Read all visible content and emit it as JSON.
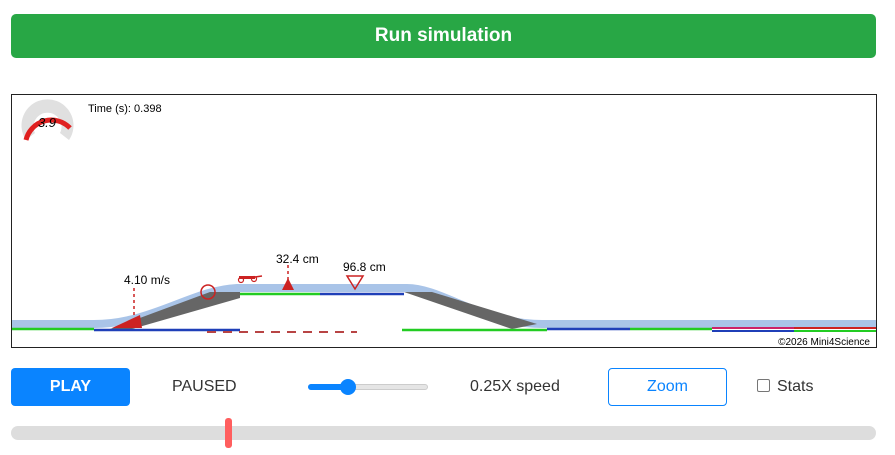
{
  "run_button": {
    "label": "Run simulation",
    "color": "#28a745"
  },
  "simulation": {
    "speedometer": {
      "value": "3.9",
      "needle_color": "#e02020"
    },
    "time_label": "Time (s): 0.398",
    "velocity_label": "4.10 m/s",
    "jump_height_label": "32.4 cm",
    "landing_label": "96.8 cm",
    "copyright": "©2026 Mini4Science",
    "colors": {
      "track": "#a9c4e8",
      "ramp": "#666666",
      "green": "#22cc22",
      "blue": "#1f3fb8",
      "red": "#cc2222"
    }
  },
  "controls": {
    "play_label": "PLAY",
    "status": "PAUSED",
    "speed_label": "0.25X speed",
    "speed_fraction": 0.33,
    "zoom_label": "Zoom",
    "stats_label": "Stats",
    "stats_checked": false,
    "progress_fraction": 0.251
  }
}
